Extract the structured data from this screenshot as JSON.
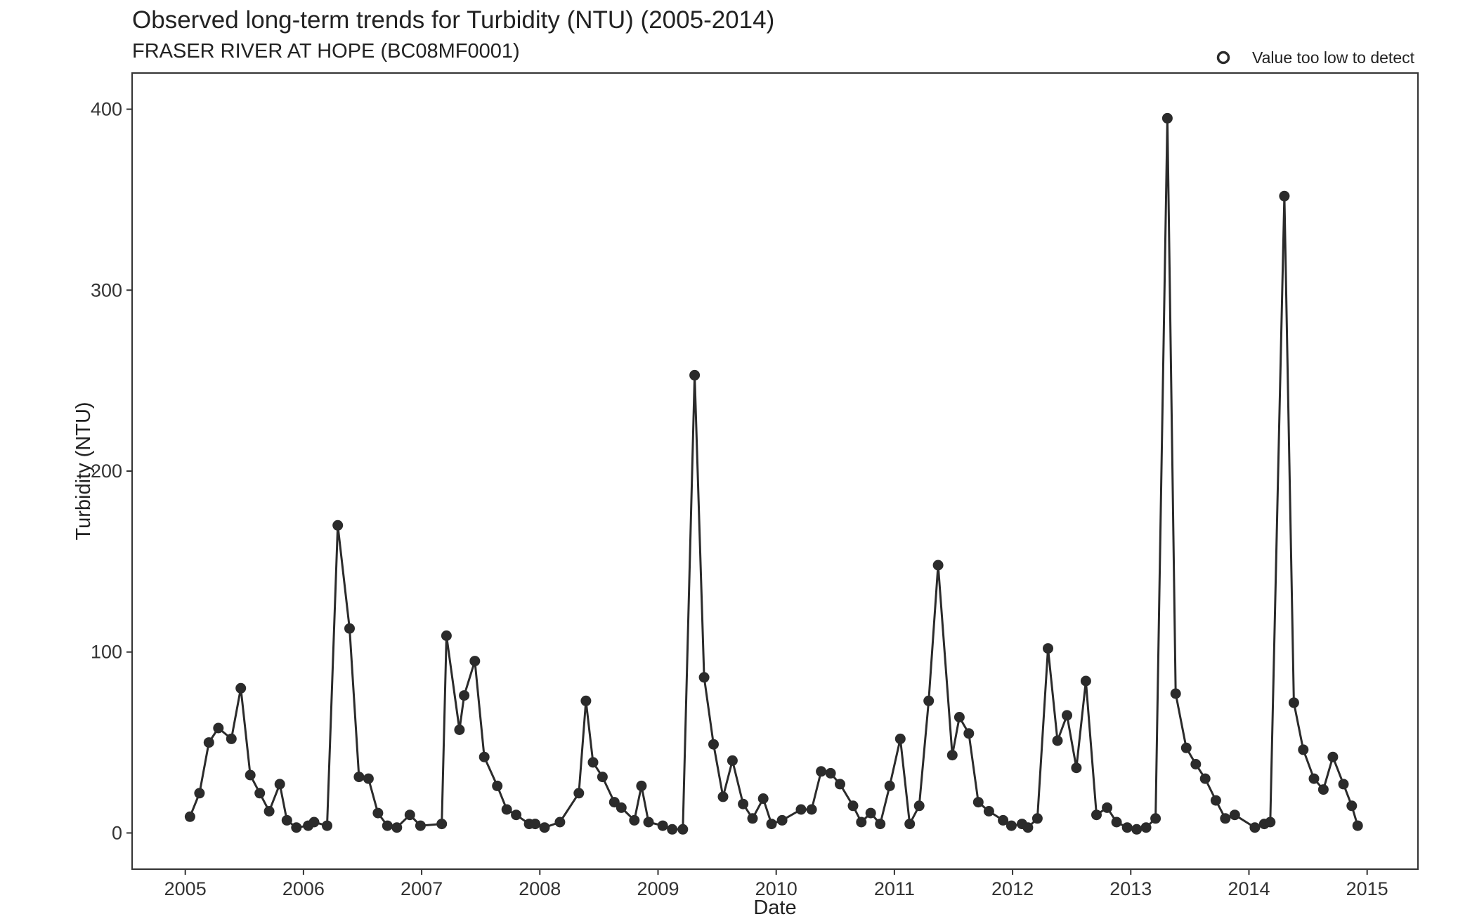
{
  "chart_data": {
    "type": "line",
    "title": "Observed long-term trends for Turbidity (NTU) (2005-2014)",
    "subtitle": "FRASER RIVER AT HOPE (BC08MF0001)",
    "xlabel": "Date",
    "ylabel": "Turbidity (NTU)",
    "xlim": [
      2004.55,
      2015.43
    ],
    "ylim": [
      -20,
      420
    ],
    "x_ticks": [
      2005,
      2006,
      2007,
      2008,
      2009,
      2010,
      2011,
      2012,
      2013,
      2014,
      2015
    ],
    "y_ticks": [
      0,
      100,
      200,
      300,
      400
    ],
    "grid": false,
    "legend": {
      "position": "top-right",
      "entries": [
        {
          "label": "Value too low to detect",
          "marker": "open-circle"
        }
      ]
    },
    "colors": {
      "line": "#2b2b2b",
      "point": "#2b2b2b"
    },
    "series": [
      {
        "x": [
          2005.04,
          2005.12,
          2005.2,
          2005.28,
          2005.39,
          2005.47,
          2005.55,
          2005.63,
          2005.71,
          2005.8,
          2005.86,
          2005.94,
          2006.04,
          2006.09,
          2006.2,
          2006.29,
          2006.39,
          2006.47,
          2006.55,
          2006.63,
          2006.71,
          2006.79,
          2006.9,
          2006.99,
          2007.17,
          2007.21,
          2007.32,
          2007.36,
          2007.45,
          2007.53,
          2007.64,
          2007.72,
          2007.8,
          2007.91,
          2007.96,
          2008.04,
          2008.17,
          2008.33,
          2008.39,
          2008.45,
          2008.53,
          2008.63,
          2008.69,
          2008.8,
          2008.86,
          2008.92,
          2009.04,
          2009.12,
          2009.21,
          2009.31,
          2009.39,
          2009.47,
          2009.55,
          2009.63,
          2009.72,
          2009.8,
          2009.89,
          2009.96,
          2010.05,
          2010.21,
          2010.3,
          2010.38,
          2010.46,
          2010.54,
          2010.65,
          2010.72,
          2010.8,
          2010.88,
          2010.96,
          2011.05,
          2011.13,
          2011.21,
          2011.29,
          2011.37,
          2011.49,
          2011.55,
          2011.63,
          2011.71,
          2011.8,
          2011.92,
          2011.99,
          2012.08,
          2012.13,
          2012.21,
          2012.3,
          2012.38,
          2012.46,
          2012.54,
          2012.62,
          2012.71,
          2012.8,
          2012.88,
          2012.97,
          2013.05,
          2013.13,
          2013.21,
          2013.31,
          2013.38,
          2013.47,
          2013.55,
          2013.63,
          2013.72,
          2013.8,
          2013.88,
          2014.05,
          2014.13,
          2014.18,
          2014.3,
          2014.38,
          2014.46,
          2014.55,
          2014.63,
          2014.71,
          2014.8,
          2014.87,
          2014.92
        ],
        "y": [
          9,
          22,
          50,
          58,
          52,
          80,
          32,
          22,
          12,
          27,
          7,
          3,
          4,
          6,
          4,
          170,
          113,
          31,
          30,
          11,
          4,
          3,
          10,
          4,
          5,
          109,
          57,
          76,
          95,
          42,
          26,
          13,
          10,
          5,
          5,
          3,
          6,
          22,
          73,
          39,
          31,
          17,
          14,
          7,
          26,
          6,
          4,
          2,
          2,
          253,
          86,
          49,
          20,
          40,
          16,
          8,
          19,
          5,
          7,
          13,
          13,
          34,
          33,
          27,
          15,
          6,
          11,
          5,
          26,
          52,
          5,
          15,
          73,
          148,
          43,
          64,
          55,
          17,
          12,
          7,
          4,
          5,
          3,
          8,
          102,
          51,
          65,
          36,
          84,
          10,
          14,
          6,
          3,
          2,
          3,
          8,
          395,
          77,
          47,
          38,
          30,
          18,
          8,
          10,
          3,
          5,
          6,
          352,
          72,
          46,
          30,
          24,
          42,
          27,
          15,
          4
        ]
      }
    ]
  }
}
